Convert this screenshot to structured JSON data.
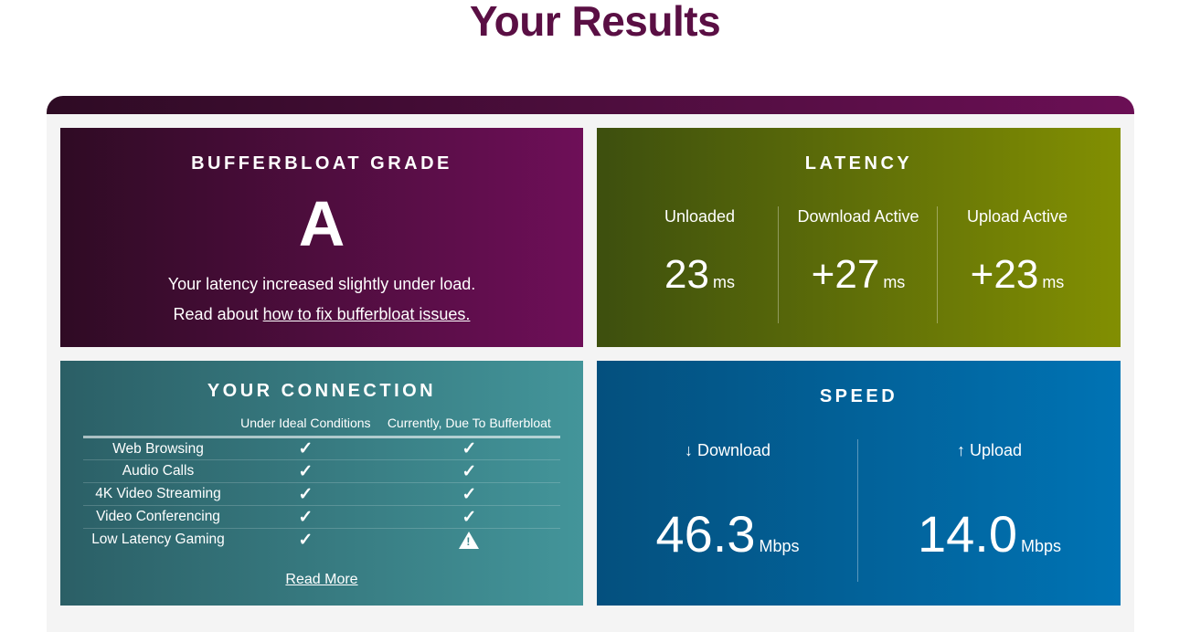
{
  "page_title": "Your Results",
  "grade": {
    "heading": "BUFFERBLOAT GRADE",
    "grade": "A",
    "description": "Your latency increased slightly under load.",
    "read_prefix": "Read about",
    "read_link": "how to fix bufferbloat issues."
  },
  "latency": {
    "heading": "LATENCY",
    "columns": [
      {
        "label": "Unloaded",
        "value": "23",
        "unit": "ms"
      },
      {
        "label": "Download Active",
        "value": "+27",
        "unit": "ms"
      },
      {
        "label": "Upload Active",
        "value": "+23",
        "unit": "ms"
      }
    ]
  },
  "connection": {
    "heading": "YOUR CONNECTION",
    "col1": "Under Ideal Conditions",
    "col2": "Currently, Due To Bufferbloat",
    "rows": [
      {
        "name": "Web Browsing",
        "ideal": "check",
        "current": "check"
      },
      {
        "name": "Audio Calls",
        "ideal": "check",
        "current": "check"
      },
      {
        "name": "4K Video Streaming",
        "ideal": "check",
        "current": "check"
      },
      {
        "name": "Video Conferencing",
        "ideal": "check",
        "current": "check"
      },
      {
        "name": "Low Latency Gaming",
        "ideal": "check",
        "current": "warning"
      }
    ],
    "read_more": "Read More"
  },
  "speed": {
    "heading": "SPEED",
    "download": {
      "label": "↓ Download",
      "value": "46.3",
      "unit": "Mbps"
    },
    "upload": {
      "label": "↑ Upload",
      "value": "14.0",
      "unit": "Mbps"
    }
  },
  "colors": {
    "title": "#5a0f44",
    "grade": "#6e0f58",
    "latency": "#828f02",
    "connection": "#43959a",
    "speed": "#0073b4"
  }
}
